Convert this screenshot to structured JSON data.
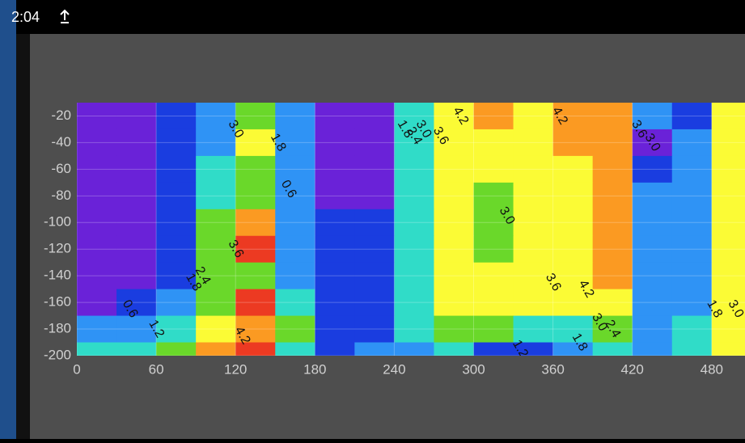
{
  "status_bar": {
    "time": "2:04"
  },
  "chart_data": {
    "type": "contour",
    "x": [
      15,
      45,
      75,
      105,
      135,
      165,
      195,
      225,
      255,
      285,
      315,
      345,
      375,
      405,
      435,
      465,
      495
    ],
    "y": [
      -20,
      -40,
      -60,
      -80,
      -100,
      -120,
      -140,
      -160,
      -180,
      -200
    ],
    "z": [
      [
        0.3,
        0.3,
        0.9,
        1.5,
        2.7,
        1.5,
        0.4,
        0.4,
        1.9,
        3.2,
        3.8,
        3.5,
        3.8,
        4.0,
        1.2,
        1.0,
        3.5
      ],
      [
        0.3,
        0.3,
        0.9,
        1.6,
        3.2,
        1.6,
        0.4,
        0.4,
        1.9,
        3.3,
        3.4,
        3.4,
        3.7,
        3.9,
        0.5,
        1.2,
        3.4
      ],
      [
        0.3,
        0.3,
        0.9,
        2.0,
        2.8,
        1.4,
        0.4,
        0.4,
        2.0,
        3.3,
        3.1,
        3.3,
        3.5,
        3.9,
        1.0,
        1.4,
        3.2
      ],
      [
        0.3,
        0.3,
        0.9,
        2.2,
        2.6,
        1.3,
        0.4,
        0.5,
        2.0,
        3.2,
        2.8,
        3.2,
        3.4,
        3.9,
        1.3,
        1.5,
        3.0
      ],
      [
        0.3,
        0.3,
        0.9,
        2.6,
        4.0,
        1.4,
        0.9,
        0.9,
        2.0,
        3.4,
        2.8,
        3.3,
        3.4,
        3.9,
        1.4,
        1.5,
        3.0
      ],
      [
        0.3,
        0.3,
        0.9,
        2.7,
        4.3,
        1.4,
        0.9,
        1.0,
        2.0,
        3.5,
        2.9,
        3.4,
        3.3,
        3.8,
        1.3,
        1.5,
        3.0
      ],
      [
        0.3,
        0.3,
        0.9,
        2.7,
        2.8,
        1.5,
        0.9,
        0.9,
        2.0,
        3.4,
        3.1,
        3.3,
        3.2,
        3.7,
        1.2,
        1.5,
        3.0
      ],
      [
        0.5,
        0.8,
        1.3,
        2.8,
        4.3,
        1.8,
        0.9,
        0.9,
        2.1,
        3.1,
        3.2,
        3.1,
        3.0,
        3.3,
        1.3,
        1.7,
        3.2
      ],
      [
        1.5,
        1.6,
        2.0,
        3.2,
        3.8,
        2.5,
        0.9,
        1.0,
        2.3,
        2.4,
        2.5,
        2.0,
        2.3,
        2.6,
        1.6,
        2.0,
        3.2
      ],
      [
        2.0,
        2.2,
        2.8,
        3.8,
        4.5,
        2.0,
        0.9,
        1.2,
        1.6,
        1.8,
        0.9,
        1.0,
        1.6,
        1.9,
        1.7,
        2.2,
        3.3
      ]
    ],
    "levels": [
      {
        "value": 0.6,
        "label": "0.6"
      },
      {
        "value": 1.2,
        "label": "1.2"
      },
      {
        "value": 1.8,
        "label": "1.8"
      },
      {
        "value": 2.4,
        "label": "2.4"
      },
      {
        "value": 3,
        "label": "3.0"
      },
      {
        "value": 3.6,
        "label": "3.6"
      },
      {
        "value": 4.2,
        "label": "4.2"
      }
    ],
    "colors": [
      "#6a22d8",
      "#1a3de0",
      "#2f93f5",
      "#30dcc8",
      "#6ad82a",
      "#fbfb35",
      "#fb9a22",
      "#ec3a22"
    ],
    "xlim": [
      0,
      505
    ],
    "ylim": [
      -200,
      -10
    ],
    "xticks": [
      0,
      60,
      120,
      180,
      240,
      300,
      360,
      420,
      480
    ],
    "yticks": [
      -20,
      -40,
      -60,
      -80,
      -100,
      -120,
      -140,
      -160,
      -180,
      -200
    ],
    "grid": true
  }
}
